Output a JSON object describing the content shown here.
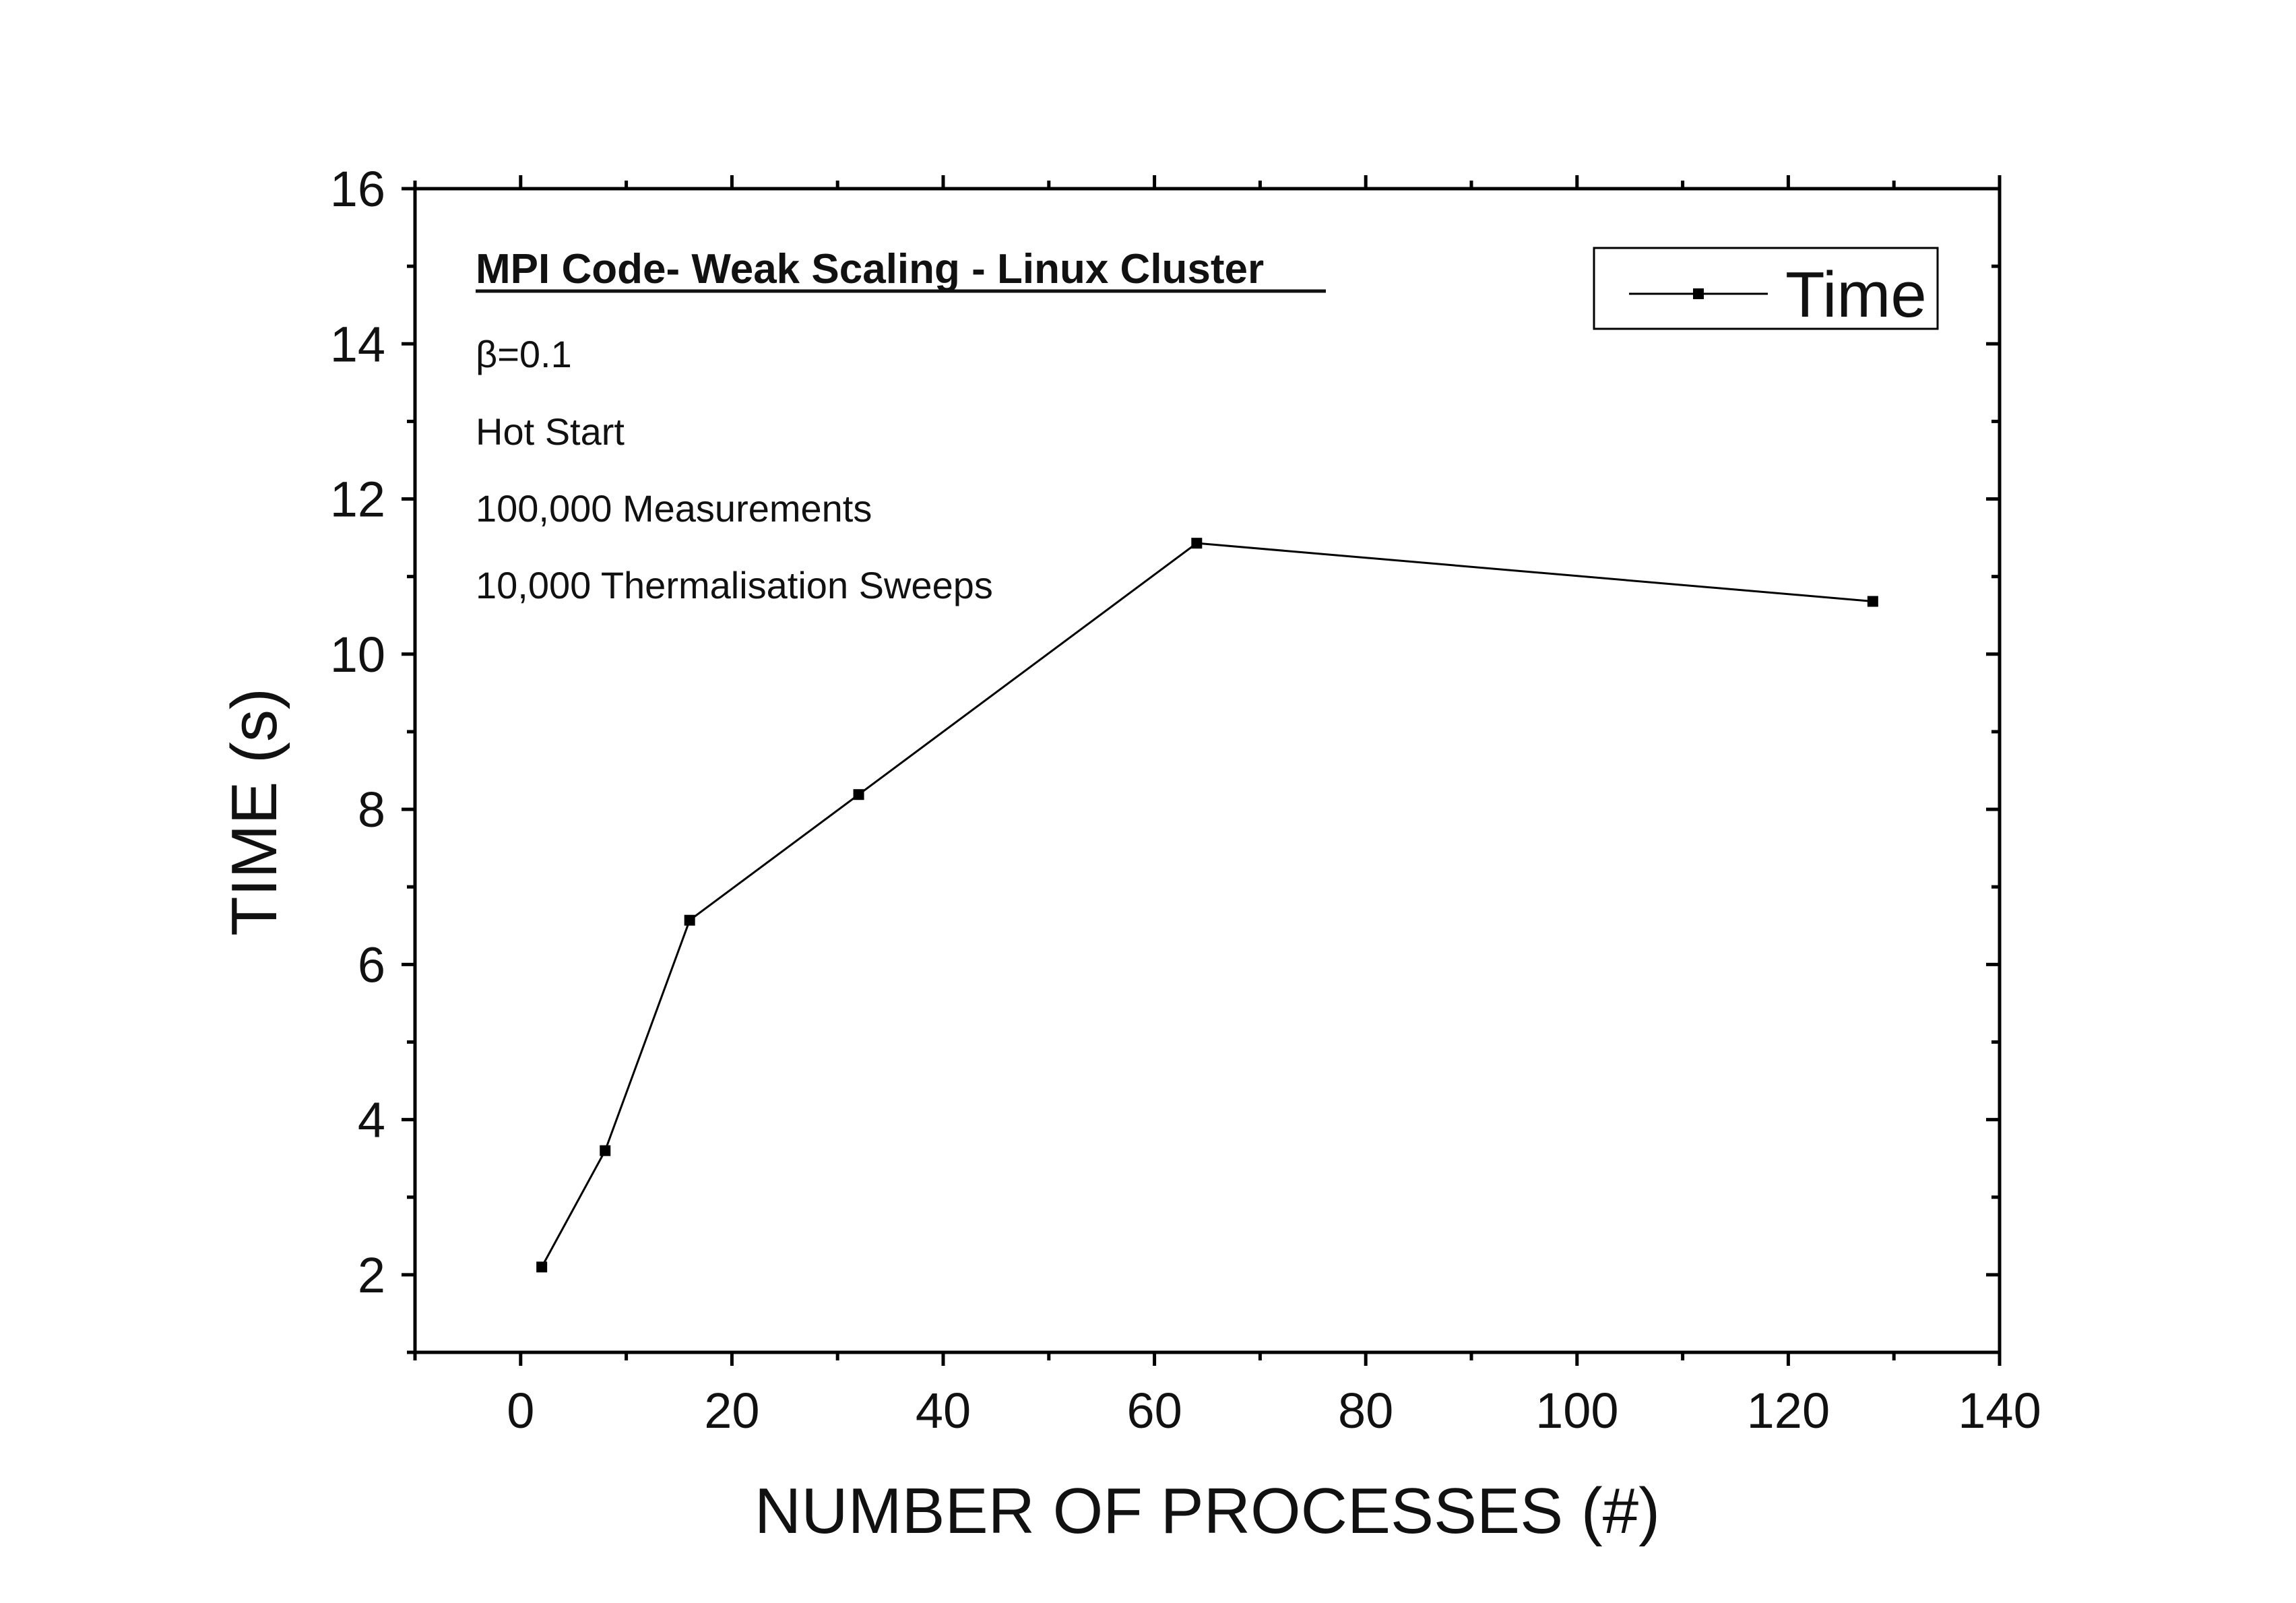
{
  "chart_data": {
    "type": "line",
    "xlabel": "NUMBER OF PROCESSES (#)",
    "ylabel": "TIME (s)",
    "xlim": [
      -10,
      140
    ],
    "ylim": [
      1,
      16
    ],
    "x_ticks": [
      0,
      20,
      40,
      60,
      80,
      100,
      120,
      140
    ],
    "y_ticks": [
      2,
      4,
      6,
      8,
      10,
      12,
      14,
      16
    ],
    "x_tick_labels": [
      "0",
      "20",
      "40",
      "60",
      "80",
      "100",
      "120",
      "140"
    ],
    "y_tick_labels": [
      "2",
      "4",
      "6",
      "8",
      "10",
      "12",
      "14",
      "16"
    ],
    "x_minor_ticks": [
      -10,
      10,
      30,
      50,
      70,
      90,
      110,
      130
    ],
    "y_minor_ticks": [
      1,
      3,
      5,
      7,
      9,
      11,
      13,
      15
    ],
    "grid": false,
    "legend_position": "top-right",
    "series": [
      {
        "name": "Time",
        "color": "#000000",
        "marker": "square",
        "x": [
          2,
          8,
          16,
          32,
          64,
          128
        ],
        "y": [
          2.1,
          3.6,
          6.57,
          8.19,
          11.43,
          10.68
        ]
      }
    ],
    "annotations": {
      "title": "MPI Code- Weak Scaling - Linux Cluster",
      "lines": [
        "β=0.1",
        "Hot Start",
        "100,000 Measurements",
        "10,000 Thermalisation Sweeps"
      ]
    }
  }
}
